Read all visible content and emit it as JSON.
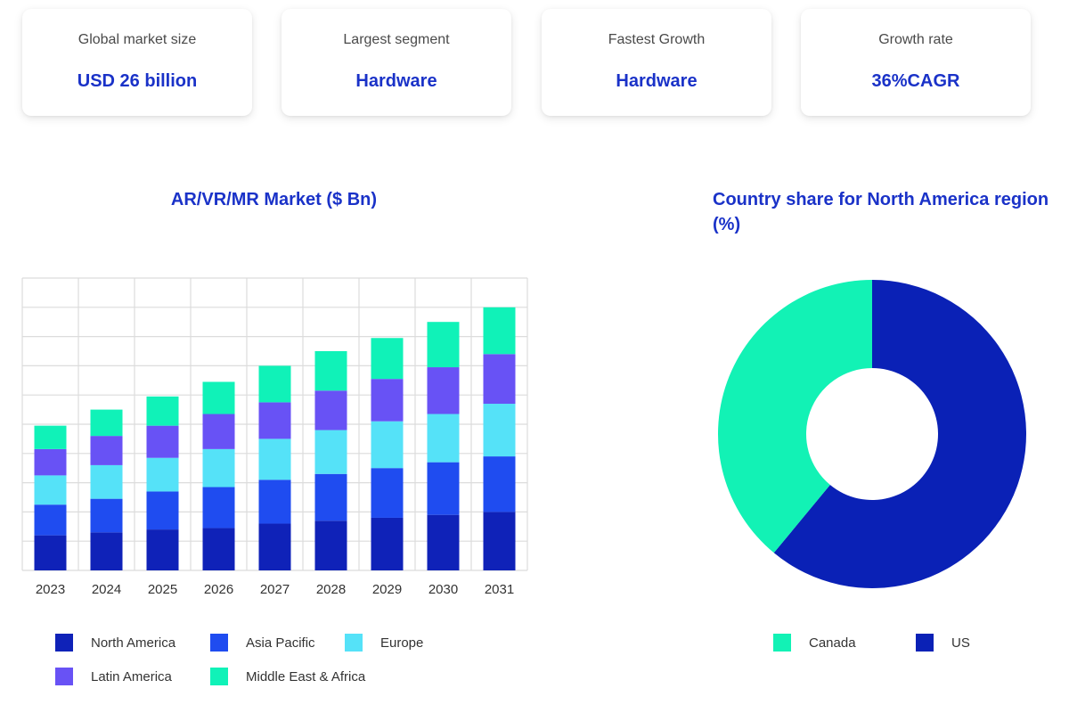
{
  "stats": [
    {
      "label": "Global market size",
      "value": "USD 26 billion"
    },
    {
      "label": "Largest segment",
      "value": "Hardware"
    },
    {
      "label": "Fastest Growth",
      "value": "Hardware"
    },
    {
      "label": "Growth rate",
      "value": "36%CAGR"
    }
  ],
  "chart_data": [
    {
      "type": "bar",
      "stacked": true,
      "title": "AR/VR/MR Market ($ Bn)",
      "xlabel": "",
      "ylabel": "",
      "categories": [
        "2023",
        "2024",
        "2025",
        "2026",
        "2027",
        "2028",
        "2029",
        "2030",
        "2031"
      ],
      "series": [
        {
          "name": "North America",
          "color": "#0f22b8",
          "values": [
            2.4,
            2.6,
            2.8,
            2.9,
            3.2,
            3.4,
            3.6,
            3.8,
            4.0
          ]
        },
        {
          "name": "Asia Pacific",
          "color": "#1f4cf0",
          "values": [
            2.1,
            2.3,
            2.6,
            2.8,
            3.0,
            3.2,
            3.4,
            3.6,
            3.8
          ]
        },
        {
          "name": "Europe",
          "color": "#55e2f8",
          "values": [
            2.0,
            2.3,
            2.3,
            2.6,
            2.8,
            3.0,
            3.2,
            3.3,
            3.6
          ]
        },
        {
          "name": "Latin America",
          "color": "#6852f5",
          "values": [
            1.8,
            2.0,
            2.2,
            2.4,
            2.5,
            2.7,
            2.9,
            3.2,
            3.4
          ]
        },
        {
          "name": "Middle East & Africa",
          "color": "#10f2b8",
          "values": [
            1.6,
            1.8,
            2.0,
            2.2,
            2.5,
            2.7,
            2.8,
            3.1,
            3.2
          ]
        }
      ],
      "ylim": [
        0,
        20
      ],
      "grid": true,
      "legend": "bottom"
    },
    {
      "type": "pie",
      "donut": true,
      "title": "Country share for North America region (%)",
      "labels": [
        "US",
        "Canada"
      ],
      "values": [
        61,
        39
      ],
      "colors": [
        "#0a21b6",
        "#12f2b5"
      ],
      "legend": "bottom"
    }
  ],
  "legends": {
    "bar": [
      "North America",
      "Asia Pacific",
      "Europe",
      "Latin America",
      "Middle East & Africa"
    ],
    "donut": [
      "Canada",
      "US"
    ]
  }
}
